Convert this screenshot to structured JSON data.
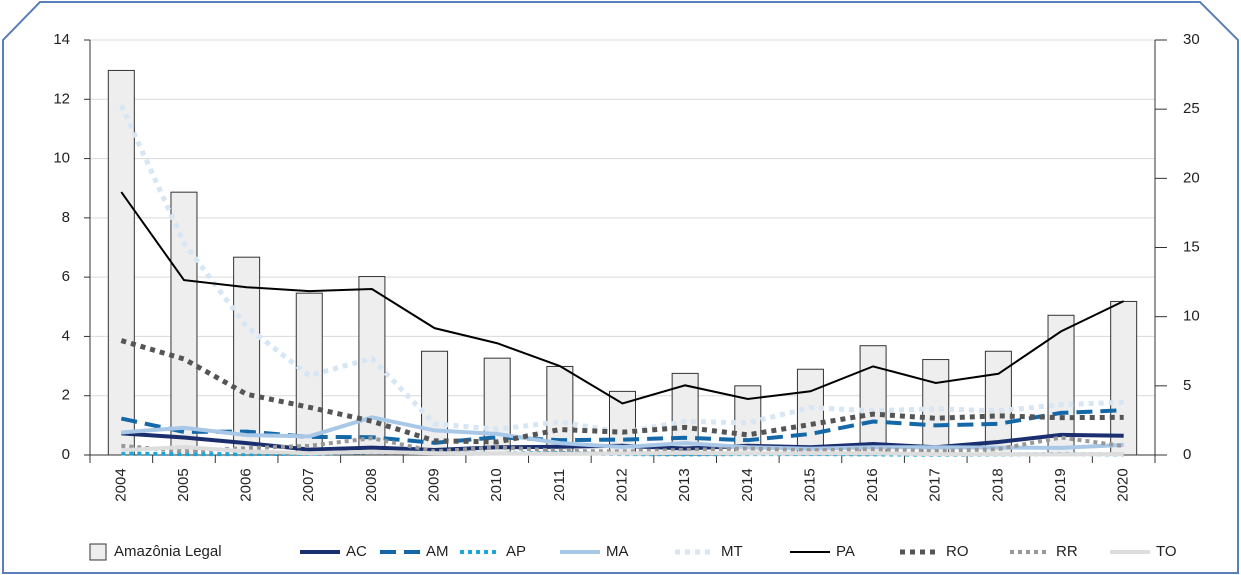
{
  "chart_data": {
    "type": "bar_line",
    "categories": [
      "2004",
      "2005",
      "2006",
      "2007",
      "2008",
      "2009",
      "2010",
      "2011",
      "2012",
      "2013",
      "2014",
      "2015",
      "2016",
      "2017",
      "2018",
      "2019",
      "2020"
    ],
    "ylim": [
      0,
      14
    ],
    "yticks": [
      0,
      2,
      4,
      6,
      8,
      10,
      12,
      14
    ],
    "y2lim": [
      0,
      30
    ],
    "y2ticks": [
      0,
      5,
      10,
      15,
      20,
      25,
      30
    ],
    "grid": true,
    "legend": "bottom",
    "series": [
      {
        "name": "Amazônia Legal",
        "type": "bar",
        "axis": "y2",
        "color": "#eeeeee",
        "values": [
          27.8,
          19.0,
          14.3,
          11.7,
          12.9,
          7.5,
          7.0,
          6.4,
          4.6,
          5.9,
          5.0,
          6.2,
          7.9,
          6.9,
          7.5,
          10.1,
          11.1
        ]
      },
      {
        "name": "AC",
        "color": "#1b2f6e",
        "style": "solid",
        "width": 4,
        "values": [
          0.73,
          0.59,
          0.4,
          0.18,
          0.25,
          0.17,
          0.26,
          0.28,
          0.31,
          0.22,
          0.31,
          0.26,
          0.37,
          0.26,
          0.44,
          0.68,
          0.65
        ]
      },
      {
        "name": "AM",
        "color": "#1468a8",
        "style": "dashed",
        "width": 4,
        "values": [
          1.23,
          0.78,
          0.79,
          0.61,
          0.6,
          0.41,
          0.6,
          0.5,
          0.52,
          0.58,
          0.5,
          0.71,
          1.13,
          1.0,
          1.05,
          1.42,
          1.51
        ]
      },
      {
        "name": "AP",
        "color": "#1aa7d8",
        "style": "dotted",
        "width": 4,
        "values": [
          0.05,
          0.03,
          0.03,
          0.04,
          0.1,
          0.07,
          0.05,
          0.07,
          0.03,
          0.02,
          0.03,
          0.03,
          0.02,
          0.01,
          0.02,
          0.03,
          0.02
        ]
      },
      {
        "name": "MA",
        "color": "#a9c8e8",
        "style": "solid",
        "width": 4,
        "values": [
          0.76,
          0.92,
          0.67,
          0.63,
          1.27,
          0.83,
          0.71,
          0.4,
          0.27,
          0.4,
          0.26,
          0.21,
          0.26,
          0.26,
          0.25,
          0.24,
          0.34
        ]
      },
      {
        "name": "MT",
        "color": "#d6e6f4",
        "style": "dotted",
        "width": 5,
        "values": [
          11.8,
          7.15,
          4.33,
          2.68,
          3.26,
          1.05,
          0.87,
          1.12,
          0.76,
          1.14,
          1.08,
          1.6,
          1.49,
          1.56,
          1.49,
          1.7,
          1.78
        ]
      },
      {
        "name": "PA",
        "color": "#000000",
        "style": "solid",
        "width": 2,
        "values": [
          8.87,
          5.9,
          5.66,
          5.53,
          5.6,
          4.28,
          3.77,
          3.0,
          1.74,
          2.35,
          1.89,
          2.15,
          2.99,
          2.43,
          2.74,
          4.17,
          5.19
        ]
      },
      {
        "name": "RO",
        "color": "#555555",
        "style": "dotted",
        "width": 5,
        "values": [
          3.86,
          3.24,
          2.05,
          1.61,
          1.14,
          0.48,
          0.44,
          0.86,
          0.77,
          0.93,
          0.68,
          1.03,
          1.38,
          1.24,
          1.32,
          1.26,
          1.27
        ]
      },
      {
        "name": "RR",
        "color": "#999999",
        "style": "dotted",
        "width": 4,
        "values": [
          0.31,
          0.13,
          0.23,
          0.31,
          0.57,
          0.12,
          0.26,
          0.14,
          0.12,
          0.17,
          0.22,
          0.16,
          0.2,
          0.13,
          0.2,
          0.59,
          0.3
        ]
      },
      {
        "name": "TO",
        "color": "#dddddd",
        "style": "solid",
        "width": 4,
        "values": [
          0.16,
          0.27,
          0.12,
          0.06,
          0.11,
          0.06,
          0.05,
          0.04,
          0.05,
          0.07,
          0.05,
          0.06,
          0.06,
          0.03,
          0.03,
          0.02,
          0.03
        ]
      }
    ]
  }
}
